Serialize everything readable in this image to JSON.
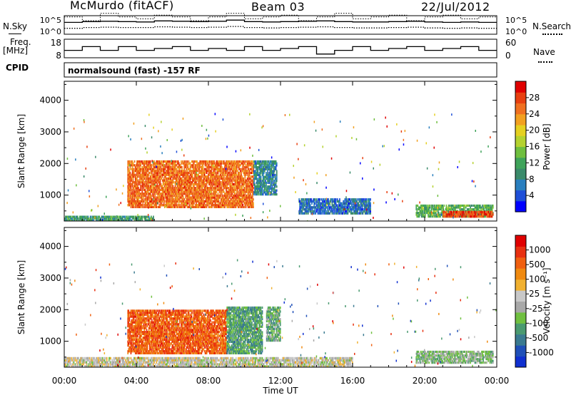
{
  "header": {
    "station": "McMurdo (fitACF)",
    "beam": "Beam 03",
    "date": "22/Jul/2012"
  },
  "top_panels": {
    "nsky_label": "N.Sky",
    "nsearch_label": "N.Search",
    "freq_label": "Freq.",
    "freq_unit": "[MHz]",
    "nave_label": "Nave",
    "cpid_label": "CPID",
    "cpid_value": "normalsound (fast) -157 RF",
    "noise_ticks": [
      "10^5",
      "10^0"
    ],
    "freq_ticks": [
      "18",
      "8"
    ],
    "nave_ticks": [
      "60",
      "0"
    ]
  },
  "axes": {
    "ylabel": "Slant Range [km]",
    "xlabel": "Time UT",
    "y_ticks": [
      "4000",
      "3000",
      "2000",
      "1000"
    ],
    "x_ticks": [
      "00:00",
      "04:00",
      "08:00",
      "12:00",
      "16:00",
      "20:00",
      "00:00"
    ]
  },
  "colorbars": {
    "power": {
      "label": "Power [dB]",
      "ticks": [
        "28",
        "24",
        "20",
        "16",
        "12",
        "8",
        "4"
      ],
      "colors": [
        "#0000ff",
        "#1f4fd8",
        "#2a7fbf",
        "#3a8a6a",
        "#3fa35a",
        "#6fbf3f",
        "#b5d22f",
        "#e5d020",
        "#f2a020",
        "#f07020",
        "#e84010",
        "#e00000"
      ]
    },
    "velocity": {
      "label": "Velocity [m s⁻¹]",
      "ticks": [
        "1000",
        "500",
        "100",
        "25",
        "-25",
        "-100",
        "-500",
        "-1000"
      ],
      "colors": [
        "#1030d0",
        "#2050b8",
        "#3a7a90",
        "#4a9a70",
        "#70c040",
        "#a8a8a8",
        "#c8c8c8",
        "#f0b030",
        "#f08a10",
        "#f06010",
        "#e83010",
        "#e00000"
      ]
    }
  },
  "chart_data": [
    {
      "type": "heatmap",
      "title": "Power [dB]",
      "xlabel": "Time UT",
      "ylabel": "Slant Range [km]",
      "x_range_hours": [
        0,
        24
      ],
      "ylim": [
        180,
        4600
      ],
      "colorbar_range": [
        0,
        30
      ],
      "regions": [
        {
          "t": [
            3.5,
            10.5
          ],
          "r": [
            600,
            2100
          ],
          "value": 24
        },
        {
          "t": [
            10.5,
            11.8
          ],
          "r": [
            1000,
            2100
          ],
          "value": 8
        },
        {
          "t": [
            19.5,
            23.8
          ],
          "r": [
            300,
            700
          ],
          "value": 12
        },
        {
          "t": [
            21.0,
            23.8
          ],
          "r": [
            300,
            500
          ],
          "value": 26
        },
        {
          "t": [
            0,
            5.0
          ],
          "r": [
            180,
            350
          ],
          "value": 10
        },
        {
          "t": [
            13.0,
            17.0
          ],
          "r": [
            400,
            900
          ],
          "value": 6
        }
      ]
    },
    {
      "type": "heatmap",
      "title": "Velocity [m s-1]",
      "xlabel": "Time UT",
      "ylabel": "Slant Range [km]",
      "x_range_hours": [
        0,
        24
      ],
      "ylim": [
        180,
        4600
      ],
      "colorbar_range": [
        -1000,
        1000
      ],
      "regions": [
        {
          "t": [
            3.5,
            9.0
          ],
          "r": [
            600,
            2000
          ],
          "value": 600
        },
        {
          "t": [
            9.0,
            11.0
          ],
          "r": [
            600,
            2100
          ],
          "value": -400
        },
        {
          "t": [
            11.2,
            12.0
          ],
          "r": [
            1000,
            2100
          ],
          "value": -300
        },
        {
          "t": [
            19.5,
            23.8
          ],
          "r": [
            300,
            700
          ],
          "value": -200
        },
        {
          "t": [
            0,
            16.0
          ],
          "r": [
            180,
            500
          ],
          "value": 20
        }
      ]
    },
    {
      "type": "line",
      "title": "N.Sky / N.Search",
      "x_range_hours": [
        0,
        24
      ],
      "series": [
        {
          "name": "N.Sky",
          "values": [
            3.2,
            3.4,
            3.5,
            3.4,
            3.3,
            3.6,
            3.5,
            3.4,
            3.5,
            3.8,
            3.4,
            3.3,
            3.4,
            3.5,
            3.6,
            3.4,
            3.3,
            3.3,
            3.4,
            3.5,
            3.3,
            3.2,
            3.3,
            3.2,
            3.2
          ]
        },
        {
          "name": "N.Search",
          "values": [
            1.6,
            1.8,
            1.9,
            1.8,
            1.8,
            2.0,
            1.9,
            1.8,
            1.9,
            2.1,
            1.8,
            1.7,
            1.8,
            1.9,
            2.0,
            1.8,
            1.7,
            1.7,
            1.8,
            1.9,
            1.7,
            1.6,
            1.7,
            1.6,
            1.6
          ]
        }
      ]
    },
    {
      "type": "line",
      "title": "Freq. / Nave",
      "x_range_hours": [
        0,
        24
      ],
      "series": [
        {
          "name": "Freq.",
          "values": [
            12,
            14,
            12,
            14,
            12,
            13,
            14,
            12,
            13,
            12,
            14,
            12,
            13,
            14,
            10,
            12,
            14,
            12,
            13,
            14,
            12,
            13,
            14,
            12,
            12
          ]
        },
        {
          "name": "Nave",
          "values": [
            30,
            28,
            32,
            30,
            29,
            31,
            30,
            28,
            30,
            32,
            29,
            30,
            31,
            28,
            30,
            32,
            29,
            30,
            31,
            28,
            30,
            31,
            29,
            30,
            30
          ]
        }
      ]
    }
  ]
}
